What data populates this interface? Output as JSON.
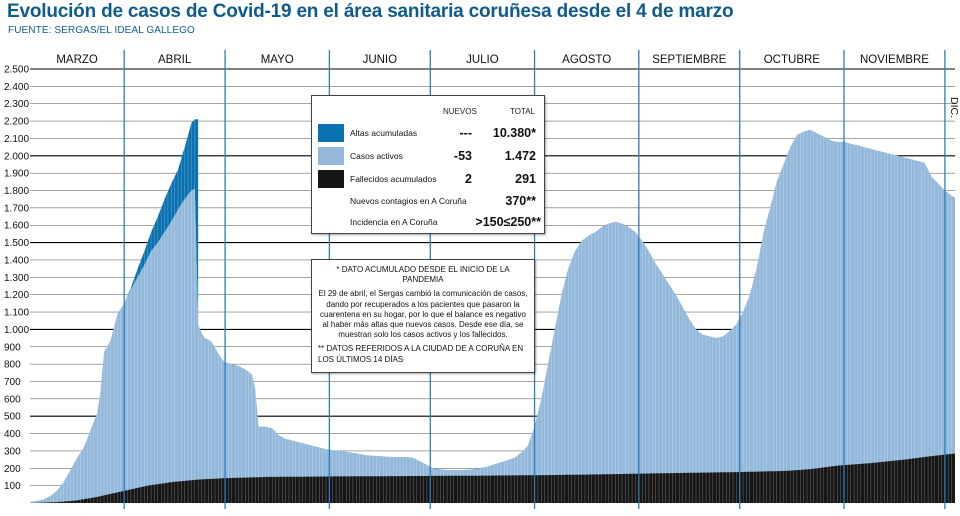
{
  "header": {
    "title": "Evolución de casos de Covid-19 en el área sanitaria coruñesa desde el 4 de marzo",
    "source": "FUENTE: SERGAS/EL IDEAL GALLEGO"
  },
  "colors": {
    "title": "#0f5c8c",
    "altas": "#0a72b0",
    "activos": "#93b8da",
    "fallecidos": "#161616",
    "grid": "#000000"
  },
  "legend": {
    "head_nuevos": "NUEVOS",
    "head_total": "TOTAL",
    "rows": [
      {
        "label": "Altas acumuladas",
        "nuevos": "---",
        "total": "10.380*"
      },
      {
        "label": "Casos activos",
        "nuevos": "-53",
        "total": "1.472"
      },
      {
        "label": "Fallecidos acumulados",
        "nuevos": "2",
        "total": "291"
      },
      {
        "label": "Nuevos contagios en A Coruña",
        "value": "370**"
      },
      {
        "label": "Incidencia en A Coruña",
        "value": ">150≤250**"
      }
    ]
  },
  "note": {
    "p1": "* DATO ACUMULADO DESDE EL INICIO DE LA PANDEMIA",
    "p2": "El 29 de abril, el Sergas cambió la comunicación de casos, dando por recuperados a los pacientes que pasaron la cuarentena en su hogar, por lo que el balance es negativo al haber más altas que nuevos casos. Desde ese día, se muestran solo los casos activos y los fallecidos.",
    "p3": "** DATOS REFERIDOS A LA CIUDAD DE A CORUÑA EN LOS ÚLTIMOS 14 DÍAS"
  },
  "chart_data": {
    "type": "area",
    "title": "Evolución de casos de Covid-19 en el área sanitaria coruñesa desde el 4 de marzo",
    "x_unit": "day since 4 March",
    "ylim": [
      0,
      2500
    ],
    "y_ticks": [
      100,
      200,
      300,
      400,
      500,
      600,
      700,
      800,
      900,
      1000,
      1100,
      1200,
      1300,
      1400,
      1500,
      1600,
      1700,
      1800,
      1900,
      2000,
      2100,
      2200,
      2300,
      2400,
      2500
    ],
    "y_tick_labels": [
      "100",
      "200",
      "300",
      "400",
      "500",
      "600",
      "700",
      "800",
      "900",
      "1.000",
      "1.100",
      "1.200",
      "1.300",
      "1.400",
      "1.500",
      "1.600",
      "1.700",
      "1.800",
      "1.900",
      "2.000",
      "2.100",
      "2.200",
      "2.300",
      "2.400",
      "2.500"
    ],
    "bold_gridlines": [
      500,
      1000,
      1500,
      2000,
      2500
    ],
    "months": [
      "MARZO",
      "ABRIL",
      "MAYO",
      "JUNIO",
      "JULIO",
      "AGOSTO",
      "SEPTIEMBRE",
      "OCTUBRE",
      "NOVIEMBRE",
      "DIC."
    ],
    "month_start_day": [
      0,
      28,
      58,
      89,
      119,
      150,
      181,
      211,
      242,
      272
    ],
    "last_day": 275,
    "series": [
      {
        "name": "Fallecidos acumulados",
        "stack": "base",
        "points": [
          [
            0,
            0
          ],
          [
            8,
            5
          ],
          [
            14,
            15
          ],
          [
            20,
            35
          ],
          [
            28,
            70
          ],
          [
            35,
            100
          ],
          [
            42,
            120
          ],
          [
            50,
            135
          ],
          [
            58,
            143
          ],
          [
            70,
            150
          ],
          [
            90,
            153
          ],
          [
            110,
            155
          ],
          [
            130,
            157
          ],
          [
            150,
            160
          ],
          [
            170,
            165
          ],
          [
            190,
            172
          ],
          [
            210,
            178
          ],
          [
            225,
            185
          ],
          [
            232,
            195
          ],
          [
            240,
            215
          ],
          [
            250,
            230
          ],
          [
            260,
            250
          ],
          [
            268,
            270
          ],
          [
            275,
            285
          ]
        ]
      },
      {
        "name": "Casos activos",
        "stack": "total-height",
        "points": [
          [
            0,
            5
          ],
          [
            4,
            20
          ],
          [
            6,
            40
          ],
          [
            8,
            70
          ],
          [
            10,
            120
          ],
          [
            12,
            190
          ],
          [
            14,
            260
          ],
          [
            16,
            320
          ],
          [
            18,
            420
          ],
          [
            20,
            520
          ],
          [
            21,
            650
          ],
          [
            22,
            870
          ],
          [
            23,
            900
          ],
          [
            24,
            940
          ],
          [
            26,
            1090
          ],
          [
            28,
            1150
          ],
          [
            30,
            1230
          ],
          [
            32,
            1300
          ],
          [
            34,
            1370
          ],
          [
            36,
            1450
          ],
          [
            38,
            1500
          ],
          [
            40,
            1560
          ],
          [
            42,
            1620
          ],
          [
            44,
            1690
          ],
          [
            46,
            1750
          ],
          [
            48,
            1800
          ],
          [
            49,
            1810
          ],
          [
            50,
            1030
          ],
          [
            51,
            980
          ],
          [
            52,
            950
          ],
          [
            54,
            930
          ],
          [
            56,
            860
          ],
          [
            57,
            830
          ],
          [
            58,
            810
          ],
          [
            60,
            800
          ],
          [
            62,
            790
          ],
          [
            64,
            770
          ],
          [
            66,
            740
          ],
          [
            67,
            650
          ],
          [
            68,
            440
          ],
          [
            70,
            440
          ],
          [
            72,
            430
          ],
          [
            74,
            390
          ],
          [
            76,
            370
          ],
          [
            80,
            350
          ],
          [
            84,
            330
          ],
          [
            88,
            310
          ],
          [
            92,
            300
          ],
          [
            96,
            290
          ],
          [
            100,
            275
          ],
          [
            104,
            270
          ],
          [
            108,
            265
          ],
          [
            112,
            265
          ],
          [
            114,
            260
          ],
          [
            116,
            240
          ],
          [
            118,
            220
          ],
          [
            120,
            200
          ],
          [
            124,
            190
          ],
          [
            128,
            190
          ],
          [
            132,
            195
          ],
          [
            136,
            210
          ],
          [
            140,
            235
          ],
          [
            144,
            260
          ],
          [
            146,
            290
          ],
          [
            148,
            330
          ],
          [
            150,
            440
          ],
          [
            152,
            600
          ],
          [
            154,
            800
          ],
          [
            156,
            1000
          ],
          [
            158,
            1200
          ],
          [
            160,
            1350
          ],
          [
            162,
            1450
          ],
          [
            164,
            1510
          ],
          [
            166,
            1540
          ],
          [
            168,
            1560
          ],
          [
            170,
            1590
          ],
          [
            172,
            1610
          ],
          [
            174,
            1620
          ],
          [
            176,
            1610
          ],
          [
            178,
            1590
          ],
          [
            180,
            1560
          ],
          [
            182,
            1510
          ],
          [
            184,
            1450
          ],
          [
            186,
            1380
          ],
          [
            188,
            1320
          ],
          [
            190,
            1260
          ],
          [
            192,
            1200
          ],
          [
            194,
            1130
          ],
          [
            196,
            1060
          ],
          [
            198,
            1000
          ],
          [
            200,
            970
          ],
          [
            202,
            960
          ],
          [
            204,
            950
          ],
          [
            206,
            960
          ],
          [
            208,
            990
          ],
          [
            210,
            1030
          ],
          [
            212,
            1100
          ],
          [
            214,
            1200
          ],
          [
            216,
            1350
          ],
          [
            218,
            1550
          ],
          [
            220,
            1700
          ],
          [
            222,
            1850
          ],
          [
            224,
            1950
          ],
          [
            226,
            2050
          ],
          [
            228,
            2120
          ],
          [
            230,
            2140
          ],
          [
            232,
            2150
          ],
          [
            234,
            2130
          ],
          [
            236,
            2110
          ],
          [
            238,
            2090
          ],
          [
            240,
            2080
          ],
          [
            242,
            2080
          ],
          [
            244,
            2070
          ],
          [
            246,
            2060
          ],
          [
            248,
            2050
          ],
          [
            250,
            2040
          ],
          [
            252,
            2030
          ],
          [
            254,
            2020
          ],
          [
            256,
            2010
          ],
          [
            258,
            2000
          ],
          [
            260,
            1990
          ],
          [
            262,
            1980
          ],
          [
            264,
            1970
          ],
          [
            266,
            1960
          ],
          [
            268,
            1880
          ],
          [
            270,
            1840
          ],
          [
            272,
            1800
          ],
          [
            274,
            1770
          ],
          [
            275,
            1760
          ]
        ]
      },
      {
        "name": "Altas acumuladas",
        "stack": "total-height",
        "points": [
          [
            28,
            1150
          ],
          [
            30,
            1240
          ],
          [
            32,
            1350
          ],
          [
            34,
            1450
          ],
          [
            36,
            1560
          ],
          [
            38,
            1650
          ],
          [
            40,
            1750
          ],
          [
            42,
            1840
          ],
          [
            44,
            1920
          ],
          [
            46,
            2050
          ],
          [
            48,
            2190
          ],
          [
            49,
            2210
          ],
          [
            50,
            2210
          ]
        ]
      }
    ],
    "legend": [
      {
        "name": "Altas acumuladas",
        "nuevos": "---",
        "total": "10.380*"
      },
      {
        "name": "Casos activos",
        "nuevos": "-53",
        "total": "1.472"
      },
      {
        "name": "Fallecidos acumulados",
        "nuevos": "2",
        "total": "291"
      }
    ],
    "annotations": [
      "Nuevos contagios en A Coruña: 370**",
      "Incidencia en A Coruña: >150≤250**"
    ],
    "grid": true
  }
}
